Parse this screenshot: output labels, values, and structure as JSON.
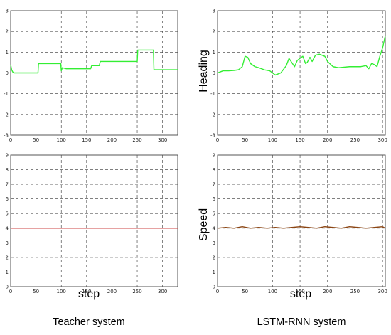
{
  "chart_data": [
    {
      "type": "line",
      "panel": "teacher-heading",
      "ylim": [
        -3,
        3
      ],
      "xlim": [
        0,
        330
      ],
      "yticks": [
        "3",
        "2",
        "1",
        "0",
        "-1",
        "-2",
        "-3"
      ],
      "xticks": [
        "0",
        "50",
        "100",
        "150",
        "200",
        "250",
        "300"
      ],
      "grid": true,
      "color": "#33ee33",
      "series": [
        {
          "x": [
            0,
            2,
            4,
            6,
            10,
            20,
            40,
            54,
            55,
            60,
            80,
            99,
            100,
            102,
            110,
            130,
            150,
            158,
            160,
            175,
            177,
            200,
            230,
            250,
            251,
            270,
            282,
            283,
            300,
            330
          ],
          "values": [
            0.4,
            0.15,
            0.05,
            0,
            0,
            0,
            0,
            0,
            0.45,
            0.45,
            0.45,
            0.45,
            0.1,
            0.25,
            0.2,
            0.2,
            0.2,
            0.2,
            0.35,
            0.35,
            0.55,
            0.55,
            0.55,
            0.55,
            1.1,
            1.1,
            1.1,
            0.15,
            0.15,
            0.15
          ]
        }
      ]
    },
    {
      "type": "line",
      "panel": "lstm-heading",
      "ylim": [
        -3,
        3
      ],
      "xlim": [
        0,
        305
      ],
      "yticks": [
        "3",
        "2",
        "1",
        "0",
        "-1",
        "-2",
        "-3"
      ],
      "xticks": [
        "0",
        "50",
        "100",
        "150",
        "200",
        "250",
        "300"
      ],
      "grid": true,
      "color": "#33ee33",
      "ylabel": "Heading",
      "series": [
        {
          "x": [
            0,
            5,
            10,
            20,
            30,
            38,
            45,
            50,
            55,
            60,
            68,
            75,
            85,
            95,
            105,
            115,
            125,
            130,
            140,
            145,
            150,
            155,
            160,
            163,
            168,
            172,
            178,
            185,
            190,
            195,
            200,
            210,
            220,
            240,
            260,
            270,
            275,
            280,
            285,
            290,
            295,
            300,
            305
          ],
          "values": [
            0,
            0.05,
            0.1,
            0.1,
            0.12,
            0.15,
            0.3,
            0.8,
            0.75,
            0.45,
            0.3,
            0.25,
            0.15,
            0.1,
            -0.1,
            0.0,
            0.35,
            0.7,
            0.3,
            0.6,
            0.7,
            0.8,
            0.45,
            0.5,
            0.75,
            0.55,
            0.85,
            0.9,
            0.85,
            0.8,
            0.55,
            0.3,
            0.25,
            0.3,
            0.3,
            0.35,
            0.2,
            0.45,
            0.4,
            0.3,
            0.8,
            1.2,
            1.8
          ]
        }
      ]
    },
    {
      "type": "line",
      "panel": "teacher-speed",
      "ylim": [
        0,
        9
      ],
      "xlim": [
        0,
        330
      ],
      "yticks": [
        "9",
        "8",
        "7",
        "6",
        "5",
        "4",
        "3",
        "2",
        "1",
        "0"
      ],
      "xticks": [
        "0",
        "50",
        "100",
        "150",
        "200",
        "250",
        "300"
      ],
      "grid": true,
      "color": "#cc4444",
      "xlabel": "step",
      "series": [
        {
          "x": [
            0,
            330
          ],
          "values": [
            4,
            4
          ]
        }
      ]
    },
    {
      "type": "line",
      "panel": "lstm-speed",
      "ylim": [
        0,
        9
      ],
      "xlim": [
        0,
        305
      ],
      "yticks": [
        "9",
        "8",
        "7",
        "6",
        "5",
        "4",
        "3",
        "2",
        "1",
        "0"
      ],
      "xticks": [
        "0",
        "50",
        "100",
        "150",
        "200",
        "250",
        "300"
      ],
      "grid": true,
      "color": "#8b4513",
      "xlabel": "step",
      "ylabel": "Speed",
      "series": [
        {
          "x": [
            0,
            15,
            30,
            45,
            60,
            75,
            90,
            105,
            120,
            135,
            150,
            165,
            180,
            195,
            210,
            225,
            240,
            255,
            270,
            285,
            300,
            305
          ],
          "values": [
            4.0,
            4.05,
            4.0,
            4.1,
            4.0,
            4.05,
            4.0,
            4.05,
            4.0,
            4.05,
            4.1,
            4.05,
            4.0,
            4.1,
            4.05,
            4.0,
            4.1,
            4.05,
            4.0,
            4.05,
            4.1,
            4.0
          ]
        }
      ]
    }
  ],
  "labels": {
    "teacher_system": "Teacher system",
    "lstm_system": "LSTM-RNN system"
  }
}
